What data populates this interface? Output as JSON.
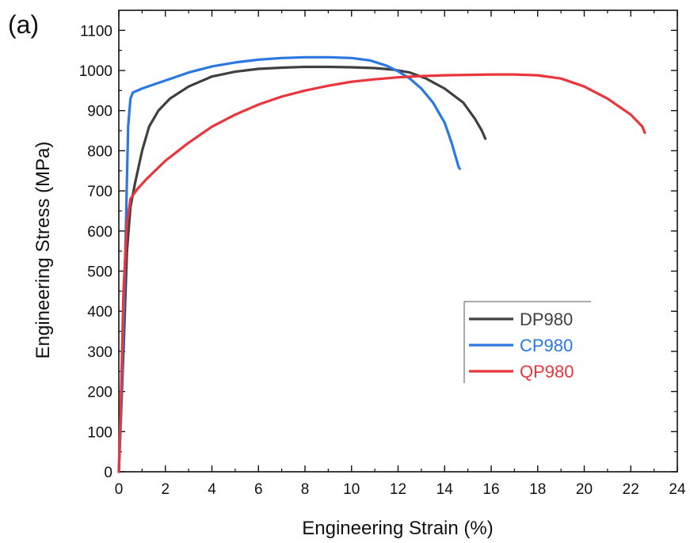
{
  "panel_label": "(a)",
  "colors": {
    "DP980": "#404040",
    "CP980": "#2a78e0",
    "QP980": "#e8363c"
  },
  "chart_data": {
    "type": "line",
    "title": "",
    "xlabel": "Engineering Strain (%)",
    "ylabel": "Engineering Stress (MPa)",
    "xlim": [
      0,
      24
    ],
    "ylim": [
      0,
      1150
    ],
    "x_ticks": [
      0,
      2,
      4,
      6,
      8,
      10,
      12,
      14,
      16,
      18,
      20,
      22,
      24
    ],
    "y_ticks": [
      0,
      100,
      200,
      300,
      400,
      500,
      600,
      700,
      800,
      900,
      1000,
      1100
    ],
    "grid": false,
    "legend_position": "bottom-right",
    "series": [
      {
        "name": "DP980",
        "color": "#404040",
        "points": [
          [
            0,
            0
          ],
          [
            0.2,
            300
          ],
          [
            0.35,
            550
          ],
          [
            0.5,
            660
          ],
          [
            0.7,
            720
          ],
          [
            1.0,
            800
          ],
          [
            1.3,
            860
          ],
          [
            1.7,
            900
          ],
          [
            2.2,
            930
          ],
          [
            3,
            960
          ],
          [
            4,
            985
          ],
          [
            5,
            997
          ],
          [
            6,
            1004
          ],
          [
            7,
            1007
          ],
          [
            8,
            1009
          ],
          [
            9,
            1009
          ],
          [
            10,
            1008
          ],
          [
            11,
            1006
          ],
          [
            11.8,
            1002
          ],
          [
            12.5,
            995
          ],
          [
            13.2,
            980
          ],
          [
            14,
            955
          ],
          [
            14.8,
            920
          ],
          [
            15.3,
            880
          ],
          [
            15.6,
            850
          ],
          [
            15.75,
            830
          ]
        ]
      },
      {
        "name": "CP980",
        "color": "#2a78e0",
        "points": [
          [
            0,
            0
          ],
          [
            0.15,
            250
          ],
          [
            0.3,
            600
          ],
          [
            0.4,
            860
          ],
          [
            0.5,
            930
          ],
          [
            0.6,
            945
          ],
          [
            0.8,
            950
          ],
          [
            1,
            955
          ],
          [
            1.5,
            965
          ],
          [
            2,
            975
          ],
          [
            3,
            995
          ],
          [
            4,
            1010
          ],
          [
            5,
            1020
          ],
          [
            6,
            1027
          ],
          [
            7,
            1031
          ],
          [
            8,
            1033
          ],
          [
            9,
            1033
          ],
          [
            10,
            1031
          ],
          [
            10.8,
            1025
          ],
          [
            11.5,
            1012
          ],
          [
            12,
            998
          ],
          [
            12.5,
            980
          ],
          [
            13,
            955
          ],
          [
            13.5,
            920
          ],
          [
            14,
            870
          ],
          [
            14.3,
            820
          ],
          [
            14.6,
            760
          ],
          [
            14.65,
            755
          ]
        ]
      },
      {
        "name": "QP980",
        "color": "#e8363c",
        "points": [
          [
            0,
            0
          ],
          [
            0.1,
            200
          ],
          [
            0.2,
            450
          ],
          [
            0.35,
            620
          ],
          [
            0.5,
            680
          ],
          [
            0.8,
            705
          ],
          [
            1.2,
            730
          ],
          [
            2,
            775
          ],
          [
            3,
            820
          ],
          [
            4,
            860
          ],
          [
            5,
            890
          ],
          [
            6,
            915
          ],
          [
            7,
            935
          ],
          [
            8,
            950
          ],
          [
            9,
            962
          ],
          [
            10,
            972
          ],
          [
            11,
            978
          ],
          [
            12,
            983
          ],
          [
            13,
            986
          ],
          [
            14,
            988
          ],
          [
            15,
            989
          ],
          [
            16,
            990
          ],
          [
            17,
            990
          ],
          [
            18,
            988
          ],
          [
            19,
            980
          ],
          [
            20,
            960
          ],
          [
            21,
            930
          ],
          [
            22,
            890
          ],
          [
            22.5,
            860
          ],
          [
            22.6,
            845
          ]
        ]
      }
    ]
  }
}
